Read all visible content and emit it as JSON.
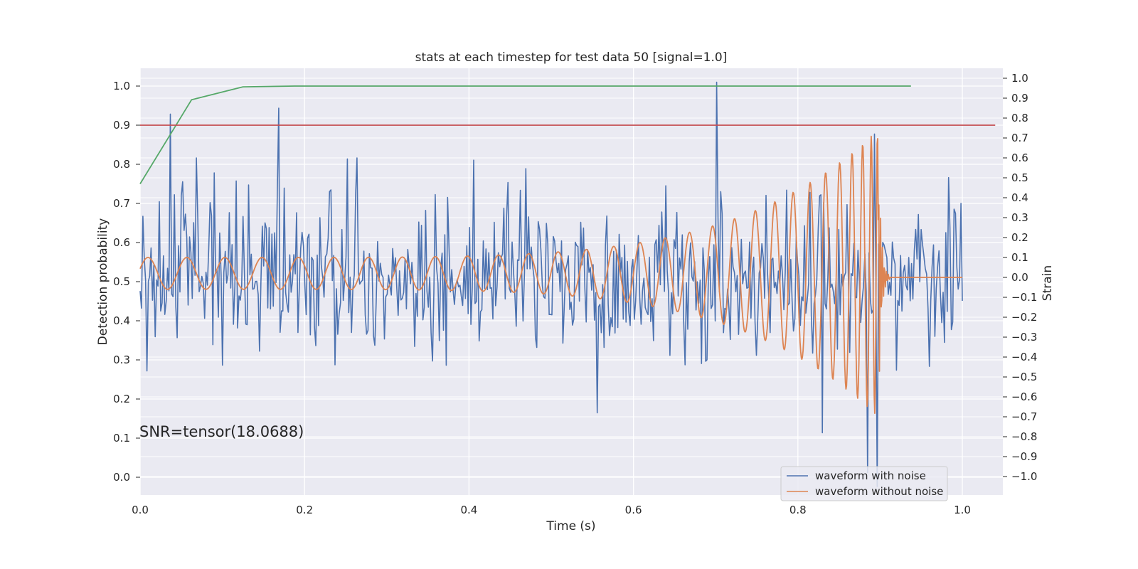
{
  "chart_data": {
    "type": "line",
    "title": "stats at each timestep for test data 50 [signal=1.0]",
    "xlabel": "Time (s)",
    "ylabel_left": "Detection probability",
    "ylabel_right": "Strain",
    "xlim": [
      0.0,
      1.05
    ],
    "ylim_left": [
      -0.05,
      1.05
    ],
    "ylim_right": [
      -1.1,
      1.1
    ],
    "x_ticks": [
      "0.0",
      "0.2",
      "0.4",
      "0.6",
      "0.8",
      "1.0"
    ],
    "y_ticks_left": [
      "0.0",
      "0.1",
      "0.2",
      "0.3",
      "0.4",
      "0.5",
      "0.6",
      "0.7",
      "0.8",
      "0.9",
      "1.0"
    ],
    "y_ticks_right": [
      "1.0",
      "0.9",
      "0.8",
      "0.7",
      "0.6",
      "0.5",
      "0.4",
      "0.3",
      "0.2",
      "0.1",
      "0.0",
      "−0.1",
      "−0.2",
      "−0.3",
      "−0.4",
      "−0.5",
      "−0.6",
      "−0.7",
      "−0.8",
      "−0.9",
      "−1.0"
    ],
    "grid": true,
    "legend_position": "lower-right",
    "annotation": "SNR=tensor(18.0688)",
    "threshold": {
      "y": 0.9,
      "color": "#c44e52",
      "x_range": [
        0.0,
        1.04
      ]
    },
    "detection_probability": {
      "color": "#55a868",
      "x": [
        0.0,
        0.0625,
        0.125,
        0.1875,
        0.25,
        0.3125,
        0.375,
        0.4375,
        0.5,
        0.5625,
        0.625,
        0.6875,
        0.75,
        0.8125,
        0.875,
        0.9375
      ],
      "y": [
        0.75,
        0.965,
        0.998,
        1.0,
        1.0,
        1.0,
        1.0,
        1.0,
        1.0,
        1.0,
        1.0,
        1.0,
        1.0,
        1.0,
        1.0,
        1.0
      ]
    },
    "series": [
      {
        "name": "waveform with noise",
        "axis": "right",
        "color": "#4c72b0",
        "description_of_values": "noisy strain, approx -0.45..0.45 range with spikes",
        "x_start": 0.0,
        "x_end": 1.0,
        "n_points": 600,
        "std": 0.2,
        "spikes": [
          {
            "x": 0.037,
            "y": 0.82
          },
          {
            "x": 0.168,
            "y": 0.85
          },
          {
            "x": 0.556,
            "y": -0.68
          },
          {
            "x": 0.702,
            "y": 0.98
          },
          {
            "x": 0.83,
            "y": -0.78
          },
          {
            "x": 0.885,
            "y": -0.98
          },
          {
            "x": 0.893,
            "y": 0.72
          },
          {
            "x": 0.897,
            "y": -1.05
          }
        ]
      },
      {
        "name": "waveform without noise",
        "axis": "right",
        "color": "#dd8452",
        "chirp": {
          "merger_x": 0.9,
          "x_end": 1.0,
          "amp_start": 0.08,
          "amp_peak": 0.73
        }
      }
    ]
  }
}
